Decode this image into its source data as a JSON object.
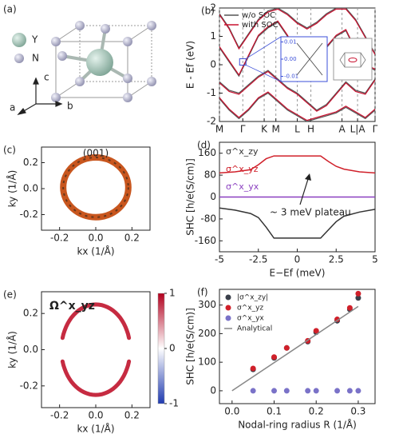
{
  "structure": {
    "panel_label": "(a)",
    "atom_large": "Y",
    "atom_small": "N",
    "axis_c": "c",
    "axis_a": "a",
    "axis_b": "b"
  },
  "chart_data": [
    {
      "type": "bands",
      "panel_label": "(b)",
      "ylabel": "E - Ef (eV)",
      "grid": true,
      "xlim": [
        0,
        8
      ],
      "ylim": [
        -2,
        2
      ],
      "yticks": [
        -2,
        -1,
        0,
        1,
        2
      ],
      "xticks": [
        {
          "value": 0,
          "label": "M"
        },
        {
          "value": 1.2,
          "label": "Γ"
        },
        {
          "value": 2.3,
          "label": "K"
        },
        {
          "value": 2.9,
          "label": "M"
        },
        {
          "value": 4.0,
          "label": "L"
        },
        {
          "value": 4.7,
          "label": "H"
        },
        {
          "value": 6.3,
          "label": "A"
        },
        {
          "value": 7.1,
          "label": "L|A"
        },
        {
          "value": 8,
          "label": "Γ"
        }
      ],
      "x": [
        0,
        0.5,
        1,
        1.5,
        2,
        2.5,
        3,
        3.5,
        4,
        4.5,
        5,
        5.5,
        6,
        6.5,
        7,
        7.5,
        8
      ],
      "series": [
        {
          "name": "w/o SOC",
          "color": "#555555",
          "bands": [
            [
              0.6,
              0.1,
              -0.4,
              0.3,
              1.0,
              1.3,
              1.5,
              1.0,
              0.3,
              0.0,
              0.2,
              0.6,
              1.0,
              1.2,
              0.5,
              0.0,
              -0.2
            ],
            [
              -0.6,
              -0.9,
              -1.0,
              -0.7,
              -0.4,
              -0.2,
              -0.5,
              -0.8,
              -1.0,
              -1.3,
              -1.6,
              -1.4,
              -1.0,
              -0.6,
              -0.9,
              -1.0,
              -0.5
            ],
            [
              -1.2,
              -1.6,
              -1.9,
              -1.6,
              -1.2,
              -1.0,
              -1.3,
              -1.6,
              -1.8,
              -2.0,
              -1.9,
              -1.8,
              -1.7,
              -1.5,
              -1.7,
              -1.9,
              -1.6
            ],
            [
              1.8,
              1.3,
              0.6,
              1.1,
              1.6,
              1.9,
              2.0,
              1.8,
              1.5,
              1.3,
              1.5,
              1.8,
              2.0,
              2.0,
              1.6,
              1.0,
              0.4
            ]
          ]
        },
        {
          "name": "with SOC",
          "color": "#c8102e",
          "bands": [
            [
              0.64,
              0.14,
              -0.36,
              0.34,
              1.04,
              1.34,
              1.54,
              1.04,
              0.34,
              0.04,
              0.24,
              0.64,
              1.04,
              1.24,
              0.54,
              0.04,
              -0.16
            ],
            [
              -0.64,
              -0.94,
              -1.04,
              -0.74,
              -0.44,
              -0.24,
              -0.54,
              -0.84,
              -1.04,
              -1.34,
              -1.64,
              -1.44,
              -1.04,
              -0.64,
              -0.94,
              -1.04,
              -0.54
            ],
            [
              -1.16,
              -1.56,
              -1.86,
              -1.56,
              -1.16,
              -0.96,
              -1.26,
              -1.56,
              -1.76,
              -1.96,
              -1.86,
              -1.76,
              -1.66,
              -1.46,
              -1.66,
              -1.86,
              -1.56
            ],
            [
              1.76,
              1.26,
              0.56,
              1.06,
              1.56,
              1.86,
              1.96,
              1.76,
              1.46,
              1.26,
              1.46,
              1.76,
              1.96,
              1.96,
              1.56,
              0.96,
              0.36
            ]
          ]
        }
      ],
      "inset": {
        "ylim": [
          -0.013,
          0.013
        ],
        "yticks": [
          {
            "value": 0.01,
            "label": "0.01"
          },
          {
            "value": 0,
            "label": "0.00"
          },
          {
            "value": -0.01,
            "label": "-0.01"
          }
        ]
      }
    },
    {
      "type": "ring",
      "panel_label": "(c)",
      "title": "(001)",
      "xlabel": "kx (1/Å)",
      "ylabel": "ky (1/Å)",
      "color": "#c8561e",
      "xlim": [
        -0.3,
        0.3
      ],
      "ylim": [
        -0.32,
        0.32
      ],
      "xticks": [
        -0.2,
        {
          "value": 0,
          "label": "0.0"
        },
        0.2
      ],
      "yticks": [
        -0.2,
        {
          "value": 0,
          "label": "0.0"
        },
        0.2
      ],
      "center": [
        0,
        0.01
      ],
      "radius_x": 0.18,
      "radius_y": 0.23
    },
    {
      "type": "line",
      "panel_label": "(d)",
      "xlabel": "E−Ef (meV)",
      "ylabel": "SHC [h/e(S/cm)]",
      "annotation": "~ 3 meV plateau",
      "xlim": [
        -5,
        5
      ],
      "ylim": [
        -200,
        200
      ],
      "xticks": [
        -5,
        -2.5,
        0,
        2.5,
        5
      ],
      "yticks": [
        -160,
        -80,
        0,
        80,
        160
      ],
      "x": [
        -5,
        -4,
        -3,
        -2.5,
        -2,
        -1.5,
        -1,
        0,
        1,
        1.5,
        2,
        2.5,
        3,
        4,
        5
      ],
      "series": [
        {
          "name": "σ^x_zy",
          "color": "#333333",
          "values": [
            -40,
            -48,
            -60,
            -75,
            -110,
            -150,
            -150,
            -150,
            -150,
            -150,
            -120,
            -90,
            -70,
            -55,
            -45
          ]
        },
        {
          "name": "σ^x_yz",
          "color": "#d0202a",
          "values": [
            88,
            92,
            100,
            118,
            140,
            150,
            150,
            150,
            150,
            150,
            130,
            112,
            102,
            92,
            88
          ]
        },
        {
          "name": "σ^x_yx",
          "color": "#8a3fc0",
          "values": [
            0,
            0,
            0,
            0,
            0,
            0,
            0,
            0,
            0,
            0,
            0,
            0,
            0,
            0,
            0
          ]
        }
      ]
    },
    {
      "type": "ring-map",
      "panel_label": "(e)",
      "annotation": "Ω^x_yz",
      "xlabel": "kx (1/Å)",
      "ylabel": "ky (1/Å)",
      "color": "#c0142c",
      "xlim": [
        -0.3,
        0.3
      ],
      "ylim": [
        -0.32,
        0.32
      ],
      "xticks": [
        -0.2,
        {
          "value": 0,
          "label": "0.0"
        },
        0.2
      ],
      "yticks": [
        -0.2,
        {
          "value": 0,
          "label": "0.0"
        },
        0.2
      ],
      "center": [
        0,
        0
      ],
      "radius_x": 0.19,
      "radius_y": 0.25,
      "clim": [
        -1,
        1
      ],
      "cticks": [
        1,
        0,
        -1
      ]
    },
    {
      "type": "scatter",
      "panel_label": "(f)",
      "xlabel": "Nodal-ring radius R (1/Å)",
      "ylabel": "SHC [h/e(S/cm)]",
      "xlim": [
        -0.03,
        0.34
      ],
      "ylim": [
        -45,
        355
      ],
      "xticks": [
        {
          "value": 0,
          "label": "0.0"
        },
        0.1,
        0.2,
        0.3
      ],
      "yticks": [
        0,
        100,
        200,
        300
      ],
      "series": [
        {
          "name": "|σ^x_zy|",
          "color": "#3a3f4a",
          "x": [
            0.05,
            0.1,
            0.13,
            0.18,
            0.2,
            0.25,
            0.28,
            0.3
          ],
          "values": [
            75,
            115,
            150,
            172,
            205,
            245,
            285,
            325
          ]
        },
        {
          "name": "σ^x_yz",
          "color": "#d0202a",
          "x": [
            0.05,
            0.1,
            0.13,
            0.18,
            0.2,
            0.25,
            0.28,
            0.3
          ],
          "values": [
            78,
            118,
            150,
            175,
            210,
            250,
            290,
            340
          ]
        },
        {
          "name": "σ^x_yx",
          "color": "#7a72c8",
          "x": [
            0.05,
            0.1,
            0.13,
            0.18,
            0.2,
            0.25,
            0.28,
            0.3
          ],
          "values": [
            0,
            0,
            0,
            0,
            0,
            0,
            0,
            0
          ]
        },
        {
          "name": "Analytical",
          "color": "#888888",
          "line": true,
          "x": [
            0,
            0.3
          ],
          "values": [
            0,
            295
          ]
        }
      ]
    }
  ]
}
